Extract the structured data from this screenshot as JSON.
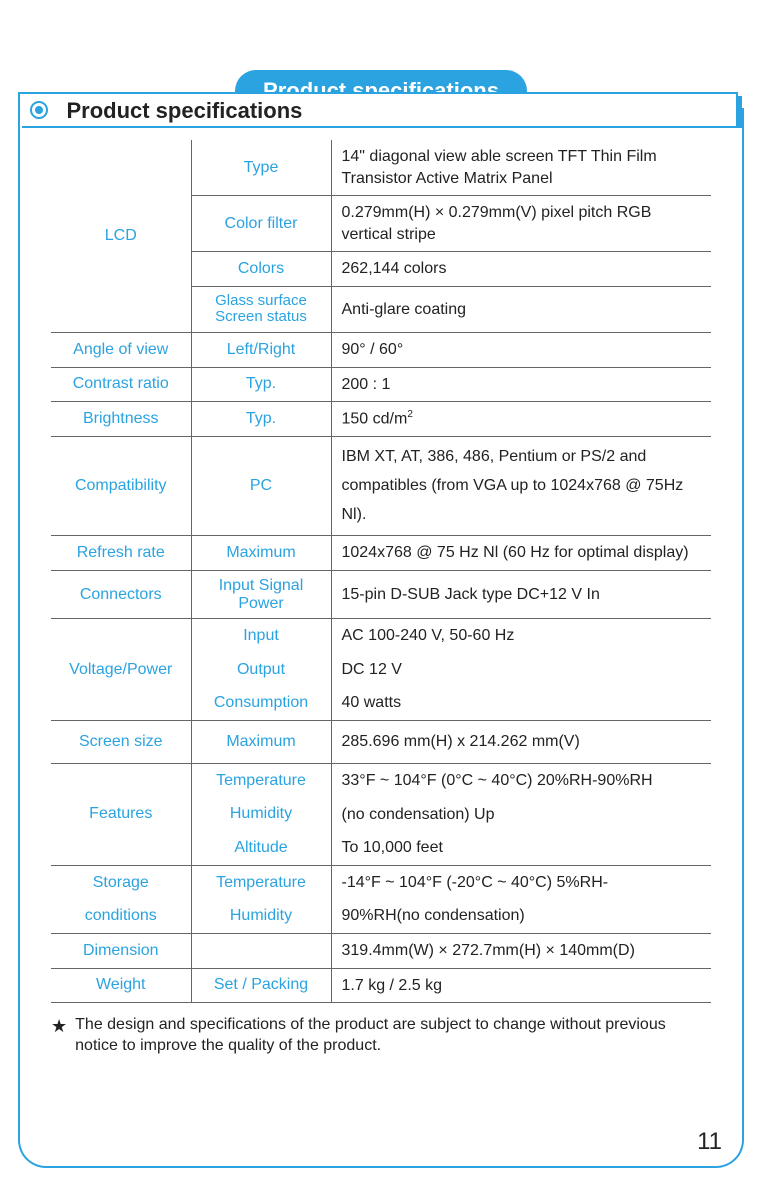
{
  "header": {
    "title": "Product specifications"
  },
  "pill": "Product specifications",
  "table": {
    "lcd": {
      "label": "LCD",
      "type_label": "Type",
      "type_val": "14\" diagonal view able screen TFT Thin Film Transistor Active Matrix Panel",
      "filter_label": "Color filter",
      "filter_val": "0.279mm(H) × 0.279mm(V) pixel pitch RGB vertical stripe",
      "colors_label": "Colors",
      "colors_val": "262,144 colors",
      "glass_label": "Glass surface Screen status",
      "glass_val": "Anti-glare coating"
    },
    "angle": {
      "label": "Angle of view",
      "sub": "Left/Right",
      "val": "90° / 60°"
    },
    "contrast": {
      "label": "Contrast  ratio",
      "sub": "Typ.",
      "val": "200 : 1"
    },
    "brightness": {
      "label": "Brightness",
      "sub": "Typ.",
      "val": "150 cd/m²"
    },
    "compat": {
      "label": "Compatibility",
      "sub": "PC",
      "val": "IBM XT, AT, 386, 486, Pentium or PS/2 and compatibles (from VGA up to 1024x768 @ 75Hz Nl)."
    },
    "refresh": {
      "label": "Refresh rate",
      "sub": "Maximum",
      "val": "1024x768 @ 75 Hz Nl (60 Hz for optimal display)"
    },
    "connectors": {
      "label": "Connectors",
      "sub": "Input Signal Power",
      "val": "15-pin D-SUB Jack type DC+12 V In"
    },
    "voltage": {
      "label": "Voltage/Power",
      "input_label": "Input",
      "input_val": "AC 100-240 V, 50-60 Hz",
      "output_label": "Output",
      "output_val": "DC 12 V",
      "cons_label": "Consumption",
      "cons_val": "40 watts"
    },
    "screensize": {
      "label": "Screen size",
      "sub": "Maximum",
      "val": "285.696 mm(H) x 214.262 mm(V)"
    },
    "features": {
      "label": "Features",
      "temp_label": "Temperature",
      "line1": "33°F ~ 104°F (0°C ~ 40°C) 20%RH-90%RH",
      "hum_label": "Humidity",
      "line2": "(no condensation) Up",
      "alt_label": "Altitude",
      "line3": "To 10,000 feet"
    },
    "storage": {
      "label1": "Storage",
      "label2": "conditions",
      "temp_label": "Temperature",
      "line1": "-14°F ~ 104°F (-20°C ~ 40°C) 5%RH-",
      "hum_label": "Humidity",
      "line2": "90%RH(no condensation)"
    },
    "dimension": {
      "label": "Dimension",
      "sub": "",
      "val": "319.4mm(W) × 272.7mm(H) × 140mm(D)"
    },
    "weight": {
      "label": "Weight",
      "sub": "Set / Packing",
      "val": "1.7 kg / 2.5 kg"
    }
  },
  "footnote": "The design and specifications of the product are subject to change without previous notice to improve the quality of the product.",
  "page": "11",
  "colors": {
    "accent": "#2aa3e0",
    "text": "#222222",
    "border": "#666666"
  }
}
